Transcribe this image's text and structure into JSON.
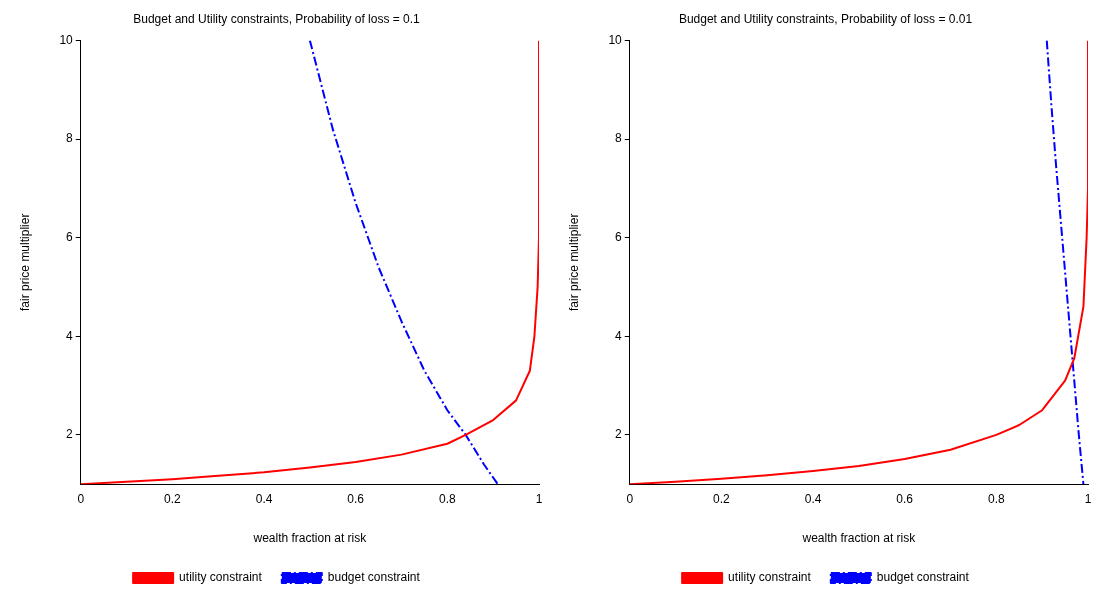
{
  "chart_data": [
    {
      "type": "line",
      "title": "Budget and Utility constraints, Probability of loss = 0.1",
      "xlabel": "wealth fraction at risk",
      "ylabel": "fair price multiplier",
      "xlim": [
        0,
        1
      ],
      "xticks": [
        0,
        0.2,
        0.4,
        0.6,
        0.8,
        1
      ],
      "ylim": [
        1,
        10
      ],
      "yticks": [
        2,
        4,
        6,
        8,
        10
      ],
      "grid": false,
      "legend": "bottom",
      "marker": "none",
      "series": [
        {
          "name": "utility constraint",
          "color": "#ff0000",
          "line_style": "solid",
          "x": [
            0,
            0.1,
            0.2,
            0.3,
            0.4,
            0.5,
            0.6,
            0.7,
            0.8,
            0.84,
            0.9,
            0.95,
            0.98,
            0.99,
            0.997,
            1,
            1
          ],
          "values": [
            1,
            1.05,
            1.1,
            1.17,
            1.24,
            1.34,
            1.45,
            1.6,
            1.82,
            2,
            2.3,
            2.7,
            3.3,
            4,
            5,
            6,
            10
          ]
        },
        {
          "name": "budget constraint",
          "color": "#0000ff",
          "line_style": "dashed",
          "x": [
            0.5,
            0.55,
            0.6,
            0.65,
            0.7,
            0.75,
            0.8,
            0.84,
            0.88,
            0.91
          ],
          "values": [
            10,
            8.2,
            6.7,
            5.4,
            4.3,
            3.3,
            2.5,
            2,
            1.4,
            1
          ]
        }
      ]
    },
    {
      "type": "line",
      "title": "Budget and Utility constraints, Probability of loss = 0.01",
      "xlabel": "wealth fraction at risk",
      "ylabel": "fair price multiplier",
      "xlim": [
        0,
        1
      ],
      "xticks": [
        0,
        0.2,
        0.4,
        0.6,
        0.8,
        1
      ],
      "ylim": [
        1,
        10
      ],
      "yticks": [
        2,
        4,
        6,
        8,
        10
      ],
      "grid": false,
      "legend": "bottom",
      "marker": "none",
      "series": [
        {
          "name": "utility constraint",
          "color": "#ff0000",
          "line_style": "solid",
          "x": [
            0,
            0.1,
            0.2,
            0.3,
            0.4,
            0.5,
            0.6,
            0.7,
            0.8,
            0.85,
            0.9,
            0.95,
            0.97,
            0.99,
            0.997,
            1,
            1
          ],
          "values": [
            1,
            1.05,
            1.11,
            1.18,
            1.27,
            1.37,
            1.51,
            1.7,
            2,
            2.2,
            2.5,
            3.1,
            3.55,
            4.6,
            6,
            7,
            10
          ]
        },
        {
          "name": "budget constraint",
          "color": "#0000ff",
          "line_style": "dashed",
          "x": [
            0.91,
            0.92,
            0.93,
            0.94,
            0.95,
            0.96,
            0.97,
            0.98,
            0.99
          ],
          "values": [
            10,
            8.7,
            7.5,
            6.4,
            5.3,
            4.2,
            3.1,
            2,
            1
          ]
        }
      ]
    }
  ]
}
